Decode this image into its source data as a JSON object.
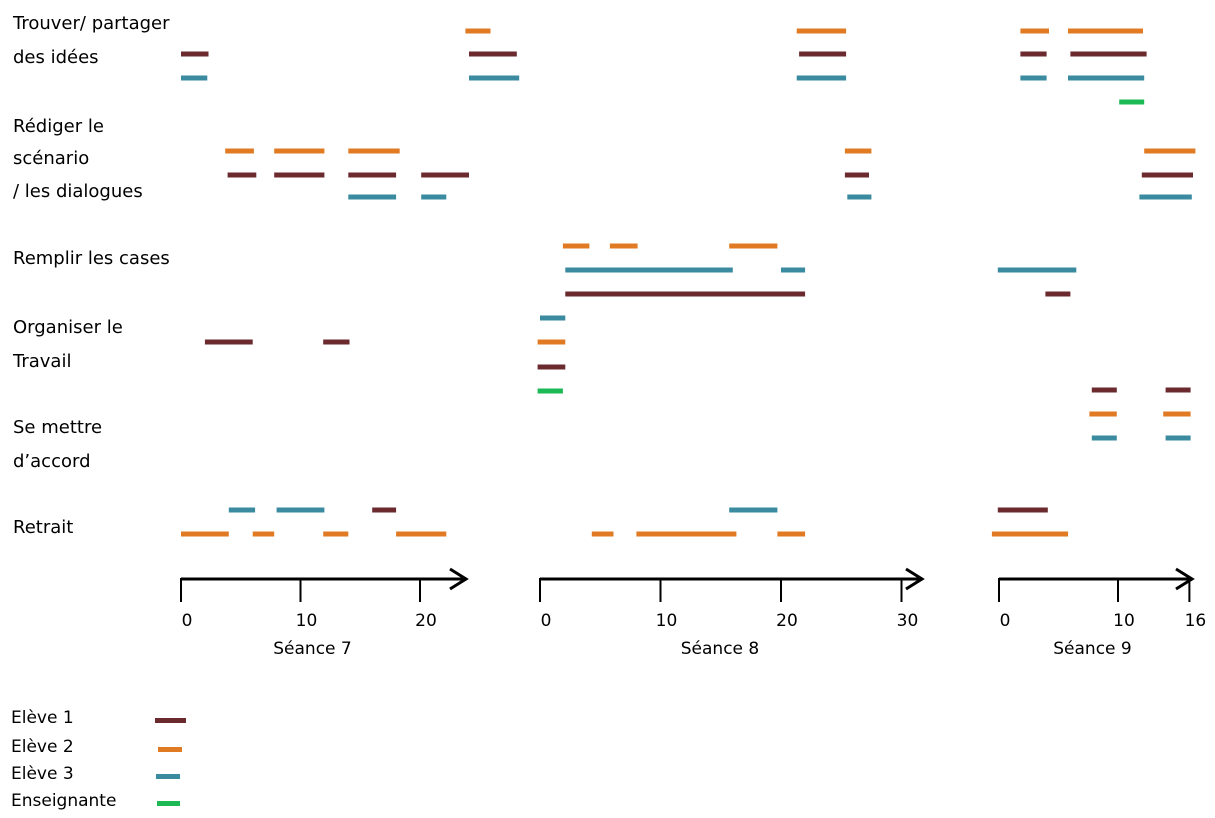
{
  "chart_data": {
    "type": "timeline",
    "colors": {
      "Elève 1": "#6a2a2e",
      "Elève 2": "#e07b24",
      "Elève 3": "#3a8ba0",
      "Enseignante": "#1db954"
    },
    "legend": [
      "Elève 1",
      "Elève 2",
      "Elève 3",
      "Enseignante"
    ],
    "categories": [
      {
        "id": "trouver",
        "label_lines": [
          "Trouver/ partager",
          "des idées"
        ]
      },
      {
        "id": "rediger",
        "label_lines": [
          "Rédiger le",
          "scénario",
          "/ les dialogues"
        ]
      },
      {
        "id": "remplir",
        "label_lines": [
          "Remplir les cases"
        ]
      },
      {
        "id": "organiser",
        "label_lines": [
          "Organiser le",
          "Travail"
        ]
      },
      {
        "id": "accord",
        "label_lines": [
          "Se mettre",
          "d’accord"
        ]
      },
      {
        "id": "retrait",
        "label_lines": [
          "Retrait"
        ]
      }
    ],
    "sessions": [
      {
        "id": "s7",
        "title": "Séance 7",
        "ticks": [
          0,
          10,
          20
        ],
        "range": [
          0,
          24
        ]
      },
      {
        "id": "s8",
        "title": "Séance 8",
        "ticks": [
          0,
          10,
          20,
          30
        ],
        "range": [
          0,
          31.5
        ]
      },
      {
        "id": "s9",
        "title": "Séance 9",
        "ticks": [
          0,
          10,
          16
        ],
        "range": [
          0,
          16.3
        ]
      }
    ],
    "segments": [
      {
        "session": "s7",
        "category": "trouver",
        "who": "Elève 1",
        "row": 1,
        "start": 0,
        "end": 2.3
      },
      {
        "session": "s7",
        "category": "trouver",
        "who": "Elève 3",
        "row": 2,
        "start": 0,
        "end": 2.2
      },
      {
        "session": "s7",
        "category": "trouver",
        "who": "Elève 2",
        "row": 0,
        "start": 23.8,
        "end": 25.9
      },
      {
        "session": "s7",
        "category": "trouver",
        "who": "Elève 1",
        "row": 1,
        "start": 24.1,
        "end": 28.1
      },
      {
        "session": "s7",
        "category": "trouver",
        "who": "Elève 3",
        "row": 2,
        "start": 24.1,
        "end": 28.3
      },
      {
        "session": "s7",
        "category": "rediger",
        "who": "Elève 2",
        "row": 1,
        "start": 3.7,
        "end": 6.1
      },
      {
        "session": "s7",
        "category": "rediger",
        "who": "Elève 2",
        "row": 1,
        "start": 7.8,
        "end": 12.0
      },
      {
        "session": "s7",
        "category": "rediger",
        "who": "Elève 2",
        "row": 1,
        "start": 14.0,
        "end": 18.3
      },
      {
        "session": "s7",
        "category": "rediger",
        "who": "Elève 1",
        "row": 2,
        "start": 3.9,
        "end": 6.3
      },
      {
        "session": "s7",
        "category": "rediger",
        "who": "Elève 1",
        "row": 2,
        "start": 7.8,
        "end": 12.0
      },
      {
        "session": "s7",
        "category": "rediger",
        "who": "Elève 1",
        "row": 2,
        "start": 14.0,
        "end": 18.0
      },
      {
        "session": "s7",
        "category": "rediger",
        "who": "Elève 1",
        "row": 2,
        "start": 20.1,
        "end": 24.1
      },
      {
        "session": "s7",
        "category": "rediger",
        "who": "Elève 3",
        "row": 3,
        "start": 14.0,
        "end": 18.0
      },
      {
        "session": "s7",
        "category": "rediger",
        "who": "Elève 3",
        "row": 3,
        "start": 20.1,
        "end": 22.2
      },
      {
        "session": "s7",
        "category": "organiser",
        "who": "Elève 1",
        "row": 1,
        "start": 2.0,
        "end": 6.0
      },
      {
        "session": "s7",
        "category": "organiser",
        "who": "Elève 1",
        "row": 1,
        "start": 11.9,
        "end": 14.1
      },
      {
        "session": "s7",
        "category": "retrait",
        "who": "Elève 3",
        "row": 0,
        "start": 4.0,
        "end": 6.2
      },
      {
        "session": "s7",
        "category": "retrait",
        "who": "Elève 3",
        "row": 0,
        "start": 8.0,
        "end": 12.0
      },
      {
        "session": "s7",
        "category": "retrait",
        "who": "Elève 1",
        "row": 0,
        "start": 16.0,
        "end": 18.0
      },
      {
        "session": "s7",
        "category": "retrait",
        "who": "Elève 2",
        "row": 1,
        "start": 0,
        "end": 4.0
      },
      {
        "session": "s7",
        "category": "retrait",
        "who": "Elève 2",
        "row": 1,
        "start": 6.0,
        "end": 7.8
      },
      {
        "session": "s7",
        "category": "retrait",
        "who": "Elève 2",
        "row": 1,
        "start": 11.9,
        "end": 14.0
      },
      {
        "session": "s7",
        "category": "retrait",
        "who": "Elève 2",
        "row": 1,
        "start": 18.0,
        "end": 22.2
      },
      {
        "session": "s8",
        "category": "trouver",
        "who": "Elève 2",
        "row": 0,
        "start": 21.3,
        "end": 25.4
      },
      {
        "session": "s8",
        "category": "trouver",
        "who": "Elève 1",
        "row": 1,
        "start": 21.5,
        "end": 25.4
      },
      {
        "session": "s8",
        "category": "trouver",
        "who": "Elève 3",
        "row": 2,
        "start": 21.3,
        "end": 25.4
      },
      {
        "session": "s8",
        "category": "rediger",
        "who": "Elève 2",
        "row": 1,
        "start": 25.3,
        "end": 27.5
      },
      {
        "session": "s8",
        "category": "rediger",
        "who": "Elève 1",
        "row": 2,
        "start": 25.3,
        "end": 27.3
      },
      {
        "session": "s8",
        "category": "rediger",
        "who": "Elève 3",
        "row": 3,
        "start": 25.5,
        "end": 27.5
      },
      {
        "session": "s8",
        "category": "remplir",
        "who": "Elève 2",
        "row": 0,
        "start": 1.9,
        "end": 4.1
      },
      {
        "session": "s8",
        "category": "remplir",
        "who": "Elève 2",
        "row": 0,
        "start": 5.8,
        "end": 8.1
      },
      {
        "session": "s8",
        "category": "remplir",
        "who": "Elève 2",
        "row": 0,
        "start": 15.7,
        "end": 19.7
      },
      {
        "session": "s8",
        "category": "remplir",
        "who": "Elève 3",
        "row": 1,
        "start": 2.1,
        "end": 16.0
      },
      {
        "session": "s8",
        "category": "remplir",
        "who": "Elève 3",
        "row": 1,
        "start": 20.0,
        "end": 22.0
      },
      {
        "session": "s8",
        "category": "remplir",
        "who": "Elève 1",
        "row": 2,
        "start": 2.1,
        "end": 22.0
      },
      {
        "session": "s8",
        "category": "organiser",
        "who": "Elève 3",
        "row": 0,
        "start": 0,
        "end": 2.1
      },
      {
        "session": "s8",
        "category": "organiser",
        "who": "Elève 2",
        "row": 1,
        "start": -0.2,
        "end": 2.1
      },
      {
        "session": "s8",
        "category": "organiser",
        "who": "Elève 1",
        "row": 2,
        "start": -0.2,
        "end": 2.1
      },
      {
        "session": "s8",
        "category": "organiser",
        "who": "Enseignante",
        "row": 3,
        "start": -0.2,
        "end": 1.9
      },
      {
        "session": "s8",
        "category": "retrait",
        "who": "Elève 3",
        "row": 0,
        "start": 15.7,
        "end": 19.7
      },
      {
        "session": "s8",
        "category": "retrait",
        "who": "Elève 2",
        "row": 1,
        "start": 4.3,
        "end": 6.1
      },
      {
        "session": "s8",
        "category": "retrait",
        "who": "Elève 2",
        "row": 1,
        "start": 8.0,
        "end": 16.3
      },
      {
        "session": "s8",
        "category": "retrait",
        "who": "Elève 2",
        "row": 1,
        "start": 19.7,
        "end": 22.0
      },
      {
        "session": "s9",
        "category": "trouver",
        "who": "Elève 2",
        "row": 0,
        "start": 1.8,
        "end": 4.2
      },
      {
        "session": "s9",
        "category": "trouver",
        "who": "Elève 2",
        "row": 0,
        "start": 5.8,
        "end": 12.1
      },
      {
        "session": "s9",
        "category": "trouver",
        "who": "Elève 1",
        "row": 1,
        "start": 1.8,
        "end": 4.0
      },
      {
        "session": "s9",
        "category": "trouver",
        "who": "Elève 1",
        "row": 1,
        "start": 6.0,
        "end": 12.4
      },
      {
        "session": "s9",
        "category": "trouver",
        "who": "Elève 3",
        "row": 2,
        "start": 1.8,
        "end": 4.0
      },
      {
        "session": "s9",
        "category": "trouver",
        "who": "Elève 3",
        "row": 2,
        "start": 5.8,
        "end": 12.2
      },
      {
        "session": "s9",
        "category": "trouver",
        "who": "Enseignante",
        "row": 3,
        "start": 10.1,
        "end": 12.2
      },
      {
        "session": "s9",
        "category": "rediger",
        "who": "Elève 2",
        "row": 1,
        "start": 12.2,
        "end": 16.5
      },
      {
        "session": "s9",
        "category": "rediger",
        "who": "Elève 1",
        "row": 2,
        "start": 12.0,
        "end": 16.3
      },
      {
        "session": "s9",
        "category": "rediger",
        "who": "Elève 3",
        "row": 3,
        "start": 11.8,
        "end": 16.2
      },
      {
        "session": "s9",
        "category": "remplir",
        "who": "Elève 3",
        "row": 1,
        "start": -0.1,
        "end": 6.5
      },
      {
        "session": "s9",
        "category": "remplir",
        "who": "Elève 1",
        "row": 2,
        "start": 3.9,
        "end": 6.0
      },
      {
        "session": "s9",
        "category": "accord",
        "who": "Elève 1",
        "row": 0,
        "start": 7.8,
        "end": 9.9
      },
      {
        "session": "s9",
        "category": "accord",
        "who": "Elève 1",
        "row": 0,
        "start": 14.0,
        "end": 16.1
      },
      {
        "session": "s9",
        "category": "accord",
        "who": "Elève 2",
        "row": 1,
        "start": 7.6,
        "end": 9.9
      },
      {
        "session": "s9",
        "category": "accord",
        "who": "Elève 2",
        "row": 1,
        "start": 13.8,
        "end": 16.1
      },
      {
        "session": "s9",
        "category": "accord",
        "who": "Elève 3",
        "row": 2,
        "start": 7.8,
        "end": 9.9
      },
      {
        "session": "s9",
        "category": "accord",
        "who": "Elève 3",
        "row": 2,
        "start": 14.0,
        "end": 16.1
      },
      {
        "session": "s9",
        "category": "retrait",
        "who": "Elève 1",
        "row": 0,
        "start": -0.1,
        "end": 4.1
      },
      {
        "session": "s9",
        "category": "retrait",
        "who": "Elève 2",
        "row": 1,
        "start": -0.6,
        "end": 5.8
      }
    ]
  }
}
